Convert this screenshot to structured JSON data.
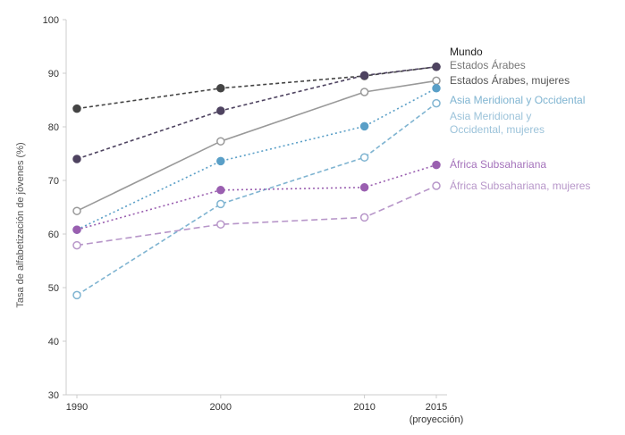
{
  "chart_data": {
    "type": "line",
    "ylabel": "Tasa de alfabetización de jóvenes (%)",
    "ylim": [
      30,
      100
    ],
    "yticks": [
      "30",
      "40",
      "50",
      "60",
      "70",
      "80",
      "90",
      "100"
    ],
    "x": [
      1990,
      2000,
      2010,
      2015
    ],
    "xticks": [
      "1990",
      "2000",
      "2010",
      "2015"
    ],
    "x_note": "(proyección)",
    "grid": false,
    "series": [
      {
        "name": "Mundo",
        "values": [
          83.4,
          87.2,
          89.5,
          91.2
        ],
        "color": "#444444",
        "marker": "filled",
        "dash": "4,3"
      },
      {
        "name": "Estados Árabes",
        "values": [
          74.0,
          83.0,
          89.6,
          91.2
        ],
        "color": "#4e4360",
        "marker": "filled",
        "dash": "4,3"
      },
      {
        "name": "Estados Árabes, mujeres",
        "values": [
          64.3,
          77.3,
          86.5,
          88.6
        ],
        "color": "#999999",
        "marker": "hollow",
        "dash": ""
      },
      {
        "name": "Asia Meridional y Occidental",
        "values": [
          60.8,
          73.6,
          80.1,
          87.2
        ],
        "color": "#5a9fc7",
        "marker": "filled",
        "dash": "2,3"
      },
      {
        "name": "Asia Meridional y Occidental, mujeres",
        "values": [
          48.6,
          65.6,
          74.3,
          84.4
        ],
        "color": "#7fb4d1",
        "marker": "hollow",
        "dash": "5,3"
      },
      {
        "name": "África Subsahariana",
        "values": [
          60.8,
          68.2,
          68.7,
          72.9
        ],
        "color": "#9a5fb0",
        "marker": "filled",
        "dash": "2,3"
      },
      {
        "name": "África Subsahariana, mujeres",
        "values": [
          57.9,
          61.8,
          63.1,
          69.0
        ],
        "color": "#b796c9",
        "marker": "hollow",
        "dash": "7,4"
      }
    ],
    "legend": [
      {
        "lines": [
          "Mundo"
        ],
        "color": "#222222"
      },
      {
        "lines": [
          "Estados Árabes"
        ],
        "color": "#777777"
      },
      {
        "lines": [
          "Estados Árabes, mujeres"
        ],
        "color": "#555555"
      },
      {
        "lines": [
          "Asia Meridional y Occidental"
        ],
        "color": "#7fb4d1"
      },
      {
        "lines": [
          "Asia Meridional y",
          "Occidental, mujeres"
        ],
        "color": "#9cc3da"
      },
      {
        "lines": [
          "África Subsahariana"
        ],
        "color": "#a472bb"
      },
      {
        "lines": [
          "África Subsahariana, mujeres"
        ],
        "color": "#b796c9"
      }
    ]
  }
}
